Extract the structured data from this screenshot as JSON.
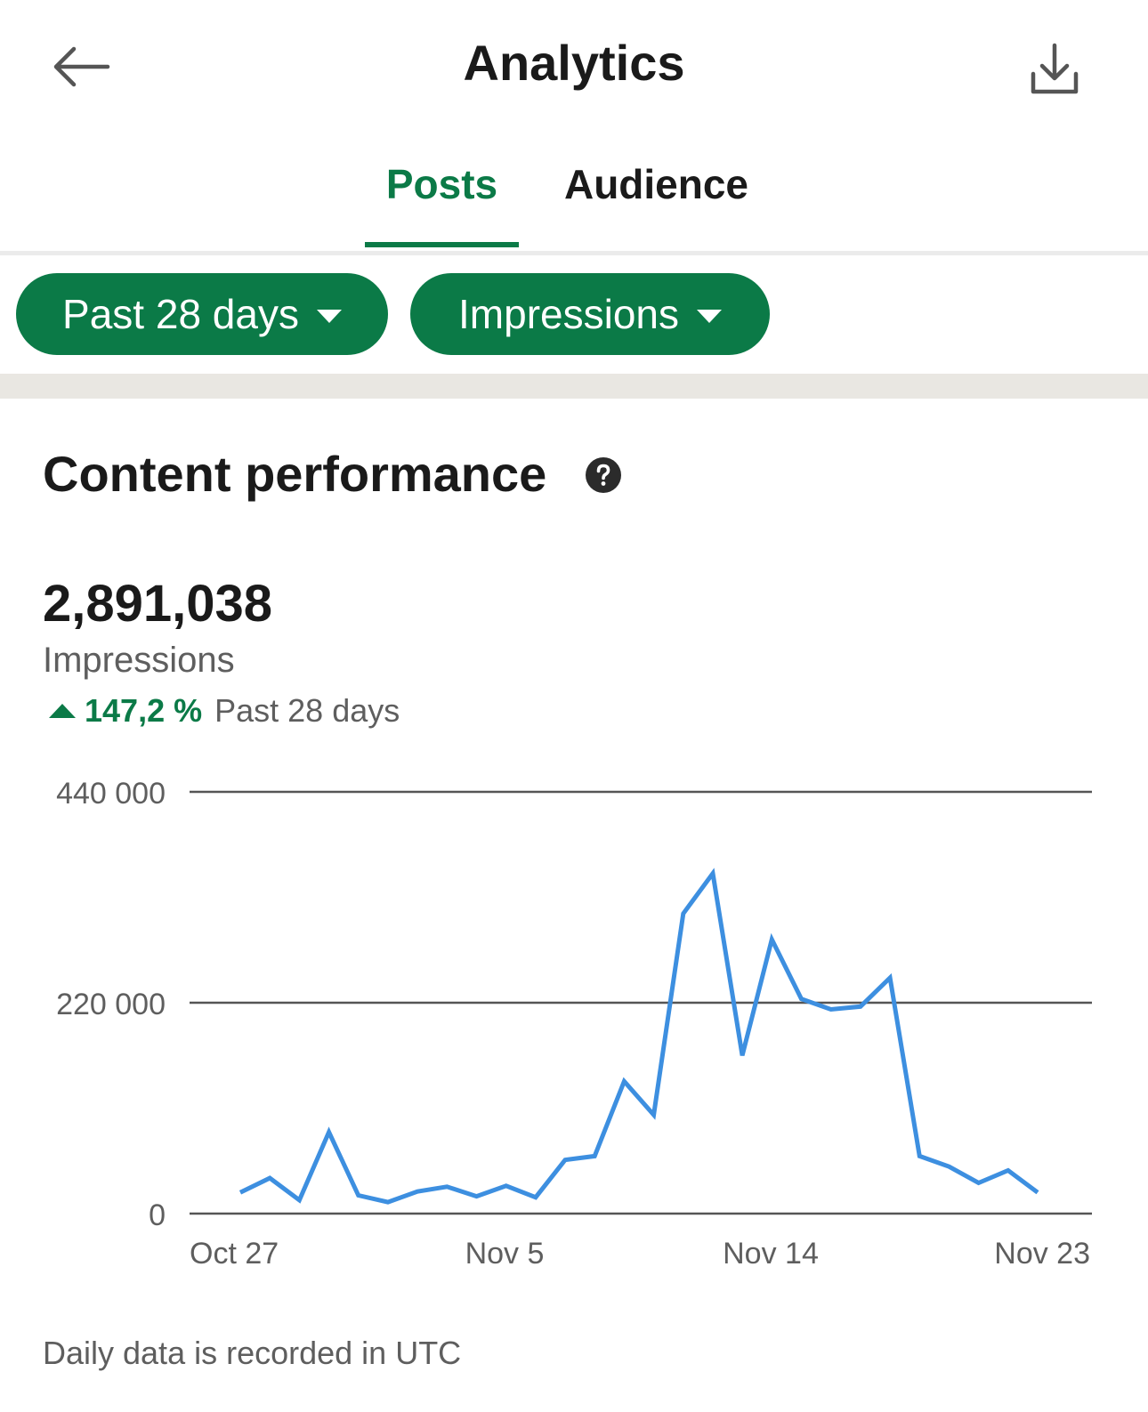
{
  "header": {
    "title": "Analytics",
    "back_icon": "arrow-left-icon",
    "download_icon": "download-icon"
  },
  "tabs": [
    {
      "label": "Posts",
      "active": true
    },
    {
      "label": "Audience",
      "active": false
    }
  ],
  "filters": {
    "range_label": "Past 28 days",
    "metric_label": "Impressions"
  },
  "content": {
    "section_title": "Content performance",
    "help_icon": "question-circle-icon",
    "total_value": "2,891,038",
    "total_label": "Impressions",
    "change_value": "147,2 %",
    "change_period": "Past 28 days",
    "footer_note": "Daily data is recorded in UTC"
  },
  "colors": {
    "accent": "#0b7a47",
    "line": "#3d8fe0",
    "band": "#e9e7e2"
  },
  "chart_data": {
    "type": "line",
    "x": [
      "Oct 27",
      "Oct 28",
      "Oct 29",
      "Oct 30",
      "Oct 31",
      "Nov 1",
      "Nov 2",
      "Nov 3",
      "Nov 4",
      "Nov 5",
      "Nov 6",
      "Nov 7",
      "Nov 8",
      "Nov 9",
      "Nov 10",
      "Nov 11",
      "Nov 12",
      "Nov 13",
      "Nov 14",
      "Nov 15",
      "Nov 16",
      "Nov 17",
      "Nov 18",
      "Nov 19",
      "Nov 20",
      "Nov 21",
      "Nov 22",
      "Nov 23"
    ],
    "series": [
      {
        "values": [
          22000,
          37000,
          14000,
          85000,
          19000,
          12000,
          23000,
          28000,
          18000,
          29000,
          17000,
          56000,
          60000,
          138000,
          103000,
          313000,
          355000,
          165000,
          286000,
          224000,
          213000,
          216000,
          246000,
          60000,
          49000,
          32000,
          45000,
          22000
        ]
      }
    ],
    "ylim": [
      0,
      440000
    ],
    "y_ticks": [
      "0",
      "220 000",
      "440 000"
    ],
    "x_tick_labels": [
      "Oct 27",
      "Nov 5",
      "Nov 14",
      "Nov 23"
    ],
    "grid": true
  }
}
